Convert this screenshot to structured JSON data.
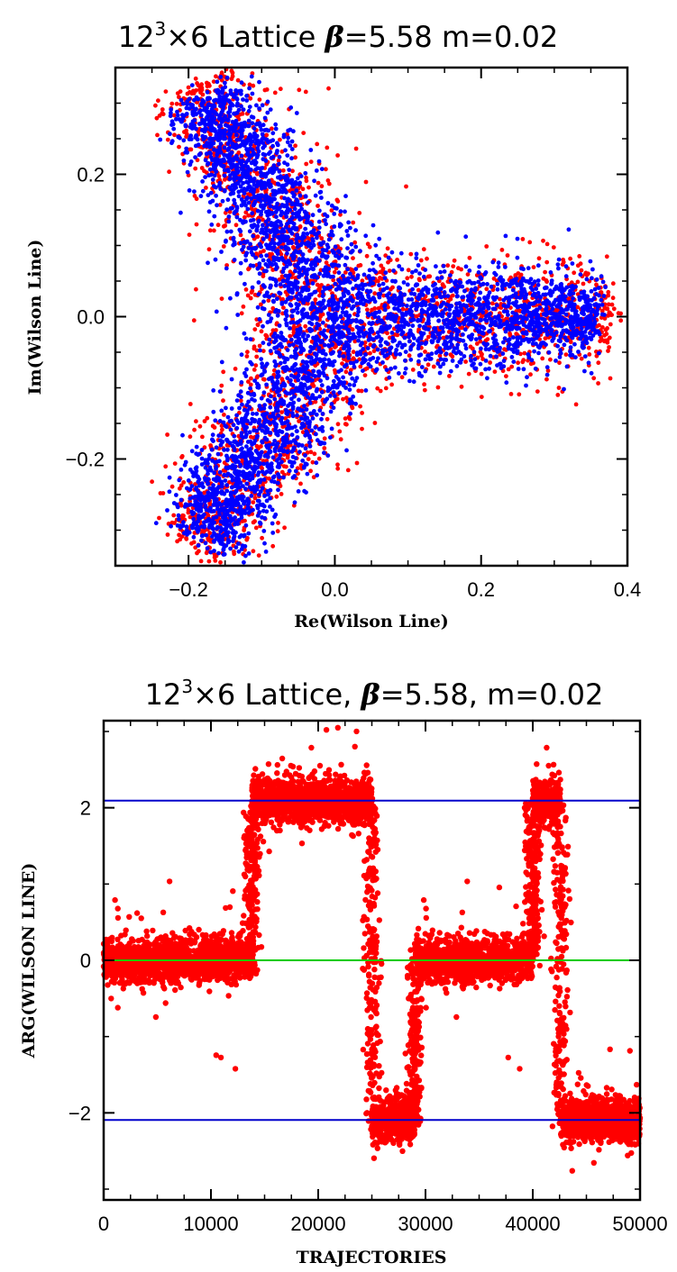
{
  "chart_data": [
    {
      "type": "scatter",
      "title": "12³×6 Lattice β=5.58 m=0.02",
      "title_parts": {
        "base": "12",
        "sup": "3",
        "pre": "×6 Lattice ",
        "sym": "β",
        "post": "=5.58 m=0.02"
      },
      "xlabel": "Re(Wilson Line)",
      "ylabel": "Im(Wilson Line)",
      "xlim": [
        -0.3,
        0.4
      ],
      "ylim": [
        -0.35,
        0.35
      ],
      "xticks": [
        -0.2,
        0.0,
        0.2,
        0.4
      ],
      "xtick_labels": [
        "−0.2",
        "0.0",
        "0.2",
        "0.4"
      ],
      "yticks": [
        -0.2,
        0.0,
        0.2
      ],
      "ytick_labels": [
        "−0.2",
        "0.0",
        "0.2"
      ],
      "grid": false,
      "series": [
        {
          "color": "#ff0000",
          "arms": [
            {
              "angle_deg": 0,
              "extent": 0.38
            },
            {
              "angle_deg": 120,
              "extent": 0.38
            },
            {
              "angle_deg": 240,
              "extent": 0.38
            }
          ]
        },
        {
          "color": "#0000ff",
          "arms": [
            {
              "angle_deg": 0,
              "extent": 0.36
            },
            {
              "angle_deg": 120,
              "extent": 0.36
            },
            {
              "angle_deg": 240,
              "extent": 0.36
            }
          ]
        }
      ]
    },
    {
      "type": "scatter",
      "title": "12³×6 Lattice, β=5.58, m=0.02",
      "title_parts": {
        "base": "12",
        "sup": "3",
        "pre": "×6 Lattice, ",
        "sym": "β",
        "post": "=5.58, m=0.02"
      },
      "xlabel": "TRAJECTORIES",
      "ylabel": "ARG(WILSON LINE)",
      "xlim": [
        0,
        50000
      ],
      "ylim": [
        -3.1416,
        3.1416
      ],
      "xticks": [
        0,
        10000,
        20000,
        30000,
        40000,
        50000
      ],
      "xtick_labels": [
        "0",
        "10000",
        "20000",
        "30000",
        "40000",
        "50000"
      ],
      "yticks": [
        -2,
        0,
        2
      ],
      "ytick_labels": [
        "−2",
        "0",
        "2"
      ],
      "grid": false,
      "reference_lines": [
        {
          "y": 2.094,
          "color": "#0000cc"
        },
        {
          "y": 0,
          "color": "#00cc00"
        },
        {
          "y": -2.094,
          "color": "#0000cc"
        }
      ],
      "series": [
        {
          "color": "#ff0000",
          "segments": [
            {
              "x": [
                0,
                13800
              ],
              "y": 0
            },
            {
              "x": [
                13800,
                25000
              ],
              "y": 2.094
            },
            {
              "x": [
                25000,
                29000
              ],
              "y": -2.094
            },
            {
              "x": [
                29000,
                40000
              ],
              "y": 0
            },
            {
              "x": [
                40000,
                42600
              ],
              "y": 2.094
            },
            {
              "x": [
                42600,
                50000
              ],
              "y": -2.094
            }
          ]
        }
      ]
    }
  ]
}
